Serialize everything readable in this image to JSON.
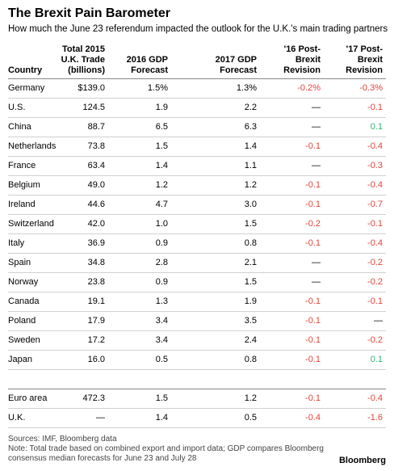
{
  "header": {
    "title": "The Brexit Pain Barometer",
    "subtitle": "How much the June 23 referendum impacted the outlook for the U.K.'s main trading partners"
  },
  "table": {
    "header": [
      [
        "Country"
      ],
      [
        "Total 2015",
        "U.K. Trade",
        "(billions)"
      ],
      [
        "2016 GDP",
        "Forecast"
      ],
      [
        "2017 GDP",
        "Forecast"
      ],
      [
        "'16 Post-",
        "Brexit",
        "Revision"
      ],
      [
        "'17 Post-",
        "Brexit",
        "Revision"
      ]
    ],
    "rows": [
      [
        "Germany",
        "$139.0",
        "1.5%",
        "1.3%",
        "-0.2%",
        "-0.3%"
      ],
      [
        "U.S.",
        "124.5",
        "1.9",
        "2.2",
        "—",
        "-0.1"
      ],
      [
        "China",
        "88.7",
        "6.5",
        "6.3",
        "—",
        "0.1"
      ],
      [
        "Netherlands",
        "73.8",
        "1.5",
        "1.4",
        "-0.1",
        "-0.4"
      ],
      [
        "France",
        "63.4",
        "1.4",
        "1.1",
        "—",
        "-0.3"
      ],
      [
        "Belgium",
        "49.0",
        "1.2",
        "1.2",
        "-0.1",
        "-0.4"
      ],
      [
        "Ireland",
        "44.6",
        "4.7",
        "3.0",
        "-0.1",
        "-0.7"
      ],
      [
        "Switzerland",
        "42.0",
        "1.0",
        "1.5",
        "-0.2",
        "-0.1"
      ],
      [
        "Italy",
        "36.9",
        "0.9",
        "0.8",
        "-0.1",
        "-0.4"
      ],
      [
        "Spain",
        "34.8",
        "2.8",
        "2.1",
        "—",
        "-0.2"
      ],
      [
        "Norway",
        "23.8",
        "0.9",
        "1.5",
        "—",
        "-0.2"
      ],
      [
        "Canada",
        "19.1",
        "1.3",
        "1.9",
        "-0.1",
        "-0.1"
      ],
      [
        "Poland",
        "17.9",
        "3.4",
        "3.5",
        "-0.1",
        "—"
      ],
      [
        "Sweden",
        "17.2",
        "3.4",
        "2.4",
        "-0.1",
        "-0.2"
      ],
      [
        "Japan",
        "16.0",
        "0.5",
        "0.8",
        "-0.1",
        "0.1"
      ]
    ],
    "summary_rows": [
      [
        "Euro area",
        "472.3",
        "1.5",
        "1.2",
        "-0.1",
        "-0.4"
      ],
      [
        "U.K.",
        "—",
        "1.4",
        "0.5",
        "-0.4",
        "-1.6"
      ]
    ]
  },
  "footer": {
    "sources": "Sources: IMF, Bloomberg data",
    "note": "Note: Total trade based on combined export and import data; GDP compares Bloomberg consensus median forecasts for June 23 and July 28",
    "logo": "Bloomberg"
  }
}
